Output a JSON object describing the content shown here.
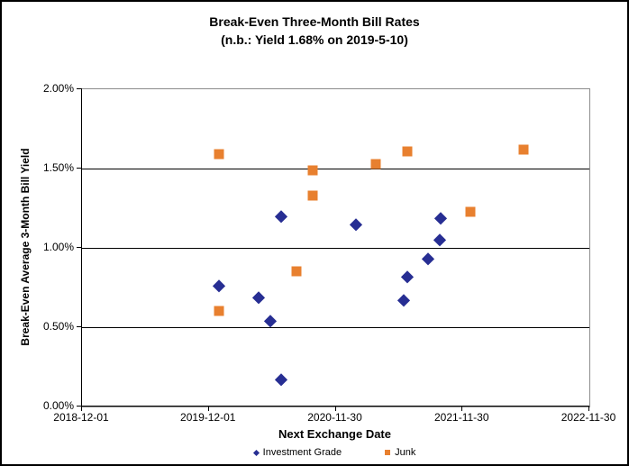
{
  "title": {
    "line1": "Break-Even Three-Month Bill Rates",
    "line2": "(n.b.: Yield 1.68% on 2019-5-10)"
  },
  "colors": {
    "investment_grade": "#272e93",
    "junk": "#e8802f",
    "gridline": "#000000",
    "plot_border": "#8c8c8c",
    "text": "#000000"
  },
  "chart_data": {
    "type": "scatter",
    "title": "Break-Even Three-Month Bill Rates (n.b.: Yield 1.68% on 2019-5-10)",
    "xlabel": "Next Exchange Date",
    "ylabel": "Break-Even Average 3-Month Bill Yield",
    "grid": "horizontal-only",
    "legend_position": "bottom-center",
    "x_axis": {
      "min": "2018-12-01",
      "max": "2022-11-30",
      "ticks": [
        "2018-12-01",
        "2019-12-01",
        "2020-11-30",
        "2021-11-30",
        "2022-11-30"
      ]
    },
    "y_axis": {
      "min": 0,
      "max": 2,
      "tick_values": [
        0,
        0.5,
        1,
        1.5,
        2
      ],
      "tick_labels": [
        "0.00%",
        "0.50%",
        "1.00%",
        "1.50%",
        "2.00%"
      ],
      "interior_gridline_values": [
        0.5,
        1,
        1.5
      ]
    },
    "series": [
      {
        "name": "Investment Grade",
        "marker": "diamond",
        "color": "#272e93",
        "points": [
          {
            "date": "2019-12-30",
            "value": 0.76
          },
          {
            "date": "2020-04-23",
            "value": 0.69
          },
          {
            "date": "2020-05-27",
            "value": 0.54
          },
          {
            "date": "2020-06-27",
            "value": 1.2
          },
          {
            "date": "2020-06-27",
            "value": 0.17
          },
          {
            "date": "2021-01-28",
            "value": 1.15
          },
          {
            "date": "2021-06-15",
            "value": 0.67
          },
          {
            "date": "2021-06-25",
            "value": 0.82
          },
          {
            "date": "2021-08-23",
            "value": 0.93
          },
          {
            "date": "2021-09-26",
            "value": 1.05
          },
          {
            "date": "2021-09-28",
            "value": 1.19
          }
        ]
      },
      {
        "name": "Junk",
        "marker": "square",
        "color": "#e8802f",
        "points": [
          {
            "date": "2019-12-30",
            "value": 1.59
          },
          {
            "date": "2019-12-30",
            "value": 0.6
          },
          {
            "date": "2020-08-10",
            "value": 0.85
          },
          {
            "date": "2020-09-26",
            "value": 1.49
          },
          {
            "date": "2020-09-26",
            "value": 1.33
          },
          {
            "date": "2021-03-26",
            "value": 1.53
          },
          {
            "date": "2021-06-25",
            "value": 1.61
          },
          {
            "date": "2021-12-23",
            "value": 1.23
          },
          {
            "date": "2022-05-25",
            "value": 1.62
          }
        ]
      }
    ]
  }
}
